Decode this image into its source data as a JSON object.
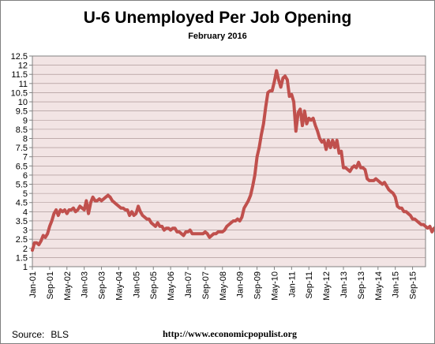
{
  "title": "U-6 Unemployed Per Job Opening",
  "subtitle": "February 2016",
  "source_label": "Source:",
  "source_value": "BLS",
  "url": "http://www.economicpopulist.org",
  "colors": {
    "line": "#c0504d",
    "plot_background": "#f2e4e4",
    "grid": "#a08a8a",
    "axis": "#808080"
  },
  "chart_data": {
    "type": "line",
    "title": "U-6 Unemployed Per Job Opening",
    "subtitle": "February 2016",
    "xlabel": "",
    "ylabel": "",
    "ylim": [
      1,
      12.5
    ],
    "grid": true,
    "legend": "none",
    "y_ticks": [
      "1",
      "1.5",
      "2",
      "2.5",
      "3",
      "3.5",
      "4",
      "4.5",
      "5",
      "5.5",
      "6",
      "6.5",
      "7",
      "7.5",
      "8",
      "8.5",
      "9",
      "9.5",
      "10",
      "10.5",
      "11",
      "11.5",
      "12",
      "12.5"
    ],
    "x_ticks": [
      "Jan-01",
      "Sep-01",
      "May-02",
      "Jan-03",
      "Sep-03",
      "May-04",
      "Jan-05",
      "Sep-05",
      "May-06",
      "Jan-07",
      "Sep-07",
      "May-08",
      "Jan-09",
      "Sep-09",
      "May-10",
      "Jan-11",
      "Sep-11",
      "May-12",
      "Jan-13",
      "Sep-13",
      "May-14",
      "Jan-15",
      "Sep-15"
    ],
    "x_start": "2001-01",
    "series": [
      {
        "values": [
          1.9,
          2.3,
          2.3,
          2.2,
          2.4,
          2.7,
          2.6,
          2.8,
          3.2,
          3.5,
          3.9,
          4.1,
          3.8,
          4.1,
          4.0,
          4.1,
          3.9,
          4.1,
          4.1,
          4.2,
          4.0,
          4.1,
          4.3,
          4.2,
          4.1,
          4.6,
          3.9,
          4.5,
          4.8,
          4.6,
          4.6,
          4.7,
          4.6,
          4.7,
          4.8,
          4.9,
          4.8,
          4.6,
          4.5,
          4.4,
          4.3,
          4.2,
          4.2,
          4.1,
          4.1,
          3.8,
          4.0,
          3.8,
          3.9,
          4.3,
          4.0,
          3.8,
          3.7,
          3.6,
          3.6,
          3.4,
          3.3,
          3.2,
          3.4,
          3.2,
          3.2,
          3.0,
          3.1,
          3.1,
          3.0,
          3.1,
          3.1,
          2.9,
          2.9,
          2.8,
          2.7,
          2.9,
          2.9,
          3.0,
          2.8,
          2.8,
          2.8,
          2.8,
          2.8,
          2.8,
          2.9,
          2.8,
          2.6,
          2.7,
          2.8,
          2.8,
          2.9,
          2.9,
          2.9,
          3.0,
          3.2,
          3.3,
          3.4,
          3.5,
          3.5,
          3.6,
          3.5,
          3.7,
          4.2,
          4.4,
          4.6,
          4.9,
          5.4,
          6.0,
          7.0,
          7.5,
          8.2,
          8.8,
          9.7,
          10.5,
          10.6,
          10.6,
          11.1,
          11.7,
          11.2,
          10.8,
          11.3,
          11.4,
          11.2,
          10.3,
          10.4,
          10.0,
          8.4,
          9.4,
          9.6,
          8.7,
          9.5,
          8.8,
          9.1,
          9.0,
          9.1,
          8.7,
          8.4,
          8.0,
          7.8,
          7.9,
          7.4,
          7.9,
          7.5,
          7.9,
          7.5,
          7.9,
          7.2,
          7.3,
          6.4,
          6.4,
          6.3,
          6.2,
          6.4,
          6.5,
          6.4,
          6.7,
          6.4,
          6.4,
          6.3,
          5.8,
          5.7,
          5.7,
          5.7,
          5.8,
          5.7,
          5.6,
          5.5,
          5.6,
          5.4,
          5.2,
          5.1,
          5.0,
          4.8,
          4.3,
          4.2,
          4.2,
          4.0,
          4.0,
          3.9,
          3.8,
          3.6,
          3.6,
          3.5,
          3.4,
          3.3,
          3.3,
          3.2,
          3.1,
          3.2,
          2.9,
          3.1,
          3.0,
          3.0,
          2.9,
          2.9,
          2.9,
          2.8
        ]
      }
    ]
  }
}
